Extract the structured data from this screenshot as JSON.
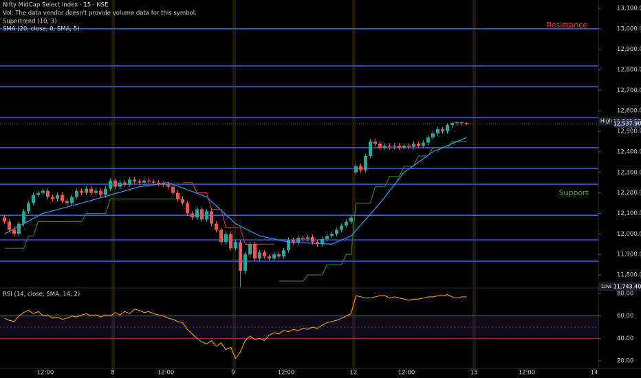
{
  "chart_data": [
    {
      "type": "candlestick",
      "title": "Nifty MidCap Select Index · 15 · NSE",
      "volume_note": "Vol: The data vendor doesn't provide volume data for this symbol.",
      "indicators": [
        "Supertrend (10, 3)",
        "SMA (20, close, 0, SMA, 5)"
      ],
      "x": [
        2,
        3,
        4,
        5,
        6,
        7,
        8,
        9,
        10,
        11,
        12,
        13,
        14,
        15,
        16,
        17,
        18,
        19,
        20,
        21,
        22,
        23,
        24,
        25,
        26,
        27,
        28,
        29,
        30,
        31,
        32,
        33,
        34,
        35,
        36,
        37,
        38,
        39,
        40,
        41,
        42,
        43,
        44,
        45,
        46,
        47,
        48,
        49,
        50,
        51,
        52,
        53,
        54,
        55,
        56,
        57,
        58,
        59,
        60,
        61,
        62,
        63,
        64,
        65,
        66,
        67,
        68,
        69,
        70,
        71,
        72,
        73,
        74,
        75,
        76,
        77,
        78,
        79,
        80,
        81,
        82,
        83,
        84,
        85,
        86,
        87,
        88,
        89,
        90,
        91,
        92,
        93,
        94,
        95,
        96,
        97,
        98
      ],
      "open": [
        12080,
        12060,
        12020,
        12000,
        12050,
        12110,
        12150,
        12190,
        12200,
        12210,
        12180,
        12170,
        12190,
        12160,
        12150,
        12180,
        12210,
        12200,
        12220,
        12200,
        12210,
        12190,
        12220,
        12260,
        12230,
        12250,
        12240,
        12265,
        12255,
        12250,
        12260,
        12255,
        12250,
        12245,
        12240,
        12230,
        12200,
        12170,
        12150,
        12100,
        12080,
        12120,
        12070,
        12110,
        12050,
        12020,
        11960,
        12000,
        11930,
        11960,
        11820,
        11900,
        11950,
        11880,
        11910,
        11890,
        11880,
        11900,
        11890,
        11920,
        11970,
        11960,
        11980,
        11975,
        11985,
        11960,
        11950,
        11975,
        11990,
        12000,
        12020,
        12040,
        12060,
        12300,
        12330,
        12310,
        12380,
        12450,
        12440,
        12420,
        12430,
        12425,
        12430,
        12420,
        12430,
        12425,
        12440,
        12430,
        12445,
        12470,
        12490,
        12510,
        12500,
        12530,
        12540,
        12545,
        12540
      ],
      "high": [
        12092,
        12072,
        12032,
        12062,
        12122,
        12162,
        12202,
        12212,
        12222,
        12222,
        12192,
        12202,
        12202,
        12172,
        12192,
        12222,
        12222,
        12232,
        12232,
        12222,
        12222,
        12232,
        12272,
        12272,
        12262,
        12262,
        12277,
        12277,
        12267,
        12272,
        12272,
        12267,
        12262,
        12257,
        12252,
        12242,
        12212,
        12182,
        12162,
        12112,
        12132,
        12132,
        12122,
        12122,
        12062,
        12032,
        12012,
        12012,
        11972,
        11972,
        11912,
        11962,
        11962,
        11922,
        11922,
        11902,
        11912,
        11912,
        11932,
        11982,
        11982,
        11992,
        11992,
        11997,
        11997,
        11972,
        11987,
        12002,
        12012,
        12032,
        12052,
        12072,
        12092,
        12342,
        12342,
        12392,
        12462,
        12462,
        12452,
        12442,
        12442,
        12442,
        12442,
        12442,
        12442,
        12452,
        12452,
        12457,
        12482,
        12502,
        12522,
        12522,
        12540,
        12545,
        12548.55,
        12547,
        12545
      ],
      "low": [
        12048,
        12008,
        11988,
        11988,
        12038,
        12098,
        12138,
        12178,
        12188,
        12168,
        12158,
        12158,
        12148,
        12138,
        12138,
        12168,
        12188,
        12188,
        12188,
        12188,
        12178,
        12178,
        12208,
        12218,
        12218,
        12228,
        12228,
        12243,
        12238,
        12238,
        12243,
        12238,
        12233,
        12228,
        12218,
        12188,
        12158,
        12138,
        12088,
        12068,
        12068,
        12058,
        12058,
        12038,
        12008,
        11948,
        11948,
        11918,
        11918,
        11743.4,
        11808,
        11888,
        11868,
        11868,
        11878,
        11868,
        11868,
        11878,
        11878,
        11908,
        11948,
        11948,
        11963,
        11963,
        11948,
        11938,
        11938,
        11963,
        11978,
        11988,
        12008,
        12028,
        12048,
        12288,
        12298,
        12298,
        12368,
        12428,
        12408,
        12408,
        12413,
        12413,
        12408,
        12408,
        12413,
        12413,
        12418,
        12418,
        12433,
        12458,
        12478,
        12488,
        12488,
        12518,
        12528,
        12528,
        12530
      ],
      "close": [
        12060,
        12020,
        12000,
        12050,
        12110,
        12150,
        12190,
        12200,
        12210,
        12180,
        12170,
        12190,
        12160,
        12150,
        12180,
        12210,
        12200,
        12220,
        12200,
        12210,
        12190,
        12220,
        12260,
        12230,
        12250,
        12240,
        12265,
        12255,
        12250,
        12260,
        12255,
        12250,
        12245,
        12240,
        12230,
        12200,
        12170,
        12150,
        12100,
        12080,
        12120,
        12070,
        12110,
        12050,
        12020,
        11960,
        12000,
        11930,
        11960,
        11820,
        11900,
        11950,
        11880,
        11910,
        11890,
        11880,
        11900,
        11890,
        11920,
        11970,
        11960,
        11980,
        11975,
        11985,
        11960,
        11950,
        11975,
        11990,
        12000,
        12020,
        12040,
        12060,
        12080,
        12330,
        12310,
        12380,
        12450,
        12440,
        12420,
        12430,
        12425,
        12430,
        12420,
        12430,
        12425,
        12440,
        12430,
        12445,
        12470,
        12490,
        12510,
        12500,
        12530,
        12540,
        12545,
        12540,
        12537.9
      ],
      "sma": [
        12000,
        12012,
        12025,
        12038,
        12050,
        12062,
        12075,
        12088,
        12100,
        12106,
        12112,
        12119,
        12125,
        12131,
        12138,
        12144,
        12150,
        12157,
        12163,
        12170,
        12177,
        12183,
        12190,
        12197,
        12203,
        12210,
        12217,
        12223,
        12230,
        12233,
        12237,
        12240,
        12243,
        12247,
        12250,
        12241,
        12233,
        12224,
        12215,
        12206,
        12198,
        12189,
        12180,
        12158,
        12137,
        12115,
        12093,
        12072,
        12050,
        12038,
        12026,
        12014,
        12002,
        11990,
        11985,
        11980,
        11975,
        11970,
        11965,
        11960,
        11959,
        11958,
        11957,
        11956,
        11954,
        11953,
        11952,
        11951,
        11950,
        11960,
        11970,
        11980,
        11990,
        12017,
        12043,
        12070,
        12097,
        12123,
        12150,
        12180,
        12210,
        12240,
        12270,
        12300,
        12317,
        12333,
        12350,
        12367,
        12383,
        12400,
        12410,
        12420,
        12430,
        12440,
        12450,
        12460,
        12470
      ],
      "supertrend_up": [
        11930,
        11930,
        11930,
        11930,
        11930,
        11990,
        11990,
        12060,
        12060,
        12060,
        12060,
        12060,
        12060,
        12060,
        12060,
        12060,
        12060,
        12100,
        12100,
        12100,
        12100,
        12100,
        12170,
        12170,
        12170,
        12170,
        12170,
        12170,
        12170,
        12170,
        12170,
        12170,
        12170,
        12170,
        12170,
        12170,
        12170,
        12170,
        null,
        null,
        null,
        null,
        null,
        null,
        null,
        null,
        null,
        null,
        null,
        null,
        null,
        null,
        null,
        null,
        null,
        null,
        null,
        11770,
        11770,
        11770,
        11770,
        11770,
        11770,
        11800,
        11800,
        11800,
        11800,
        11850,
        11850,
        11850,
        11850,
        11900,
        11900,
        12150,
        12150,
        12150,
        12150,
        12230,
        12230,
        12230,
        12280,
        12280,
        12280,
        12330,
        12330,
        12330,
        12380,
        12380,
        12380,
        12420,
        12420,
        12420,
        12420,
        12450,
        12450,
        12450,
        12450
      ],
      "supertrend_down": [
        null,
        null,
        null,
        null,
        null,
        null,
        null,
        null,
        null,
        null,
        null,
        null,
        null,
        null,
        null,
        null,
        null,
        null,
        null,
        null,
        null,
        null,
        null,
        null,
        null,
        null,
        null,
        null,
        null,
        null,
        null,
        null,
        null,
        null,
        null,
        null,
        null,
        12250,
        12250,
        12250,
        12200,
        12200,
        12200,
        12120,
        12120,
        12120,
        12030,
        12030,
        12030,
        12030,
        11950,
        11950,
        11950,
        11950,
        11950,
        11950,
        11950,
        null,
        null,
        null,
        null,
        null,
        null,
        null,
        null,
        null,
        null,
        null,
        null,
        null,
        null,
        null,
        null,
        null,
        null,
        null,
        null,
        null,
        null,
        null,
        null,
        null,
        null,
        null,
        null,
        null,
        null,
        null,
        null,
        null,
        null,
        null,
        null,
        null,
        null,
        null,
        null
      ],
      "levels": [
        13000,
        12819,
        12718,
        12567,
        12420,
        12319,
        12242,
        12091,
        11971,
        11867
      ],
      "annotations": [
        {
          "text": "Resistance",
          "color": "#f23645"
        },
        {
          "text": "Support",
          "color": "#4caf50"
        }
      ],
      "high_marker": {
        "label": "High",
        "value": 12548.55,
        "value_label": "12,548.55"
      },
      "last_price": {
        "value": 12537.9,
        "label": "12,537.90"
      },
      "low_marker": {
        "label": "Low",
        "value": 11743.4,
        "value_label": "11,743.40"
      },
      "xlim": [
        1.57,
        125.86
      ],
      "xticks": [
        {
          "value": 11,
          "label": "12:00"
        },
        {
          "value": 25,
          "label": "8"
        },
        {
          "value": 36,
          "label": "12:00"
        },
        {
          "value": 50,
          "label": "9"
        },
        {
          "value": 61,
          "label": "12:00"
        },
        {
          "value": 75,
          "label": "12"
        },
        {
          "value": 86,
          "label": "12:00"
        },
        {
          "value": 100,
          "label": "13"
        },
        {
          "value": 111,
          "label": "12:00"
        },
        {
          "value": 125,
          "label": "14"
        }
      ],
      "ylim": [
        11739.8,
        13140.2
      ],
      "yticks": [
        {
          "value": 13100,
          "label": "13,100.00"
        },
        {
          "value": 13000,
          "label": "13,000.00"
        },
        {
          "value": 12900,
          "label": "12,900.00"
        },
        {
          "value": 12800,
          "label": "12,800.00"
        },
        {
          "value": 12700,
          "label": "12,700.00"
        },
        {
          "value": 12600,
          "label": "12,600.00"
        },
        {
          "value": 12500,
          "label": "12,500.00"
        },
        {
          "value": 12400,
          "label": "12,400.00"
        },
        {
          "value": 12300,
          "label": "12,300.00"
        },
        {
          "value": 12200,
          "label": "12,200.00"
        },
        {
          "value": 12100,
          "label": "12,100.00"
        },
        {
          "value": 12000,
          "label": "12,000.00"
        },
        {
          "value": 11900,
          "label": "11,900.00"
        },
        {
          "value": 11800,
          "label": "11,800.00"
        }
      ],
      "colors": {
        "up": "#26a69a",
        "down": "#ef5350",
        "sma": "#2196f3",
        "supertrend_up": "#2e7d32",
        "supertrend_down": "#d32f2f",
        "level": "#2f5bea"
      }
    },
    {
      "type": "line",
      "title": "RSI (14, close, SMA, 14, 2)",
      "values": [
        58,
        56,
        55,
        60,
        63,
        65,
        62,
        64,
        60,
        61,
        58,
        59,
        57,
        58,
        60,
        59,
        61,
        62,
        60,
        61,
        59,
        61,
        60,
        63,
        61,
        64,
        62,
        66,
        65,
        63,
        64,
        62,
        61,
        60,
        58,
        57,
        55,
        54,
        48,
        44,
        40,
        37,
        35,
        38,
        33,
        36,
        30,
        32,
        22,
        28,
        38,
        42,
        39,
        40,
        38,
        43,
        45,
        44,
        47,
        46,
        48,
        47,
        49,
        48,
        50,
        49,
        52,
        54,
        55,
        56,
        58,
        60,
        62,
        78,
        77,
        76,
        76,
        77,
        78,
        78,
        76,
        77,
        76,
        75,
        74,
        75,
        75,
        76,
        77,
        77,
        78,
        78,
        79,
        77,
        76,
        77,
        77
      ],
      "color": "#ff9800",
      "bands": [
        60,
        50,
        40
      ],
      "band_colors": [
        "#4c7a52",
        "#5a5a66",
        "#b22833"
      ],
      "ylim": [
        13.3,
        84.3
      ],
      "yticks": [
        {
          "value": 20,
          "label": "20.00"
        },
        {
          "value": 40,
          "label": "40.00"
        },
        {
          "value": 60,
          "label": "60.00"
        },
        {
          "value": 80,
          "label": "80.00"
        }
      ]
    }
  ]
}
